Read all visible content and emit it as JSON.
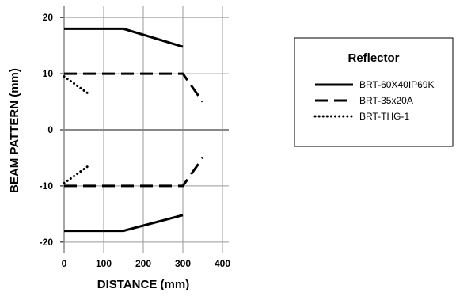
{
  "chart_data": {
    "type": "line",
    "title": "",
    "xlabel": "DISTANCE (mm)",
    "ylabel": "BEAM PATTERN (mm)",
    "xlim": [
      0,
      400
    ],
    "ylim": [
      -22,
      22
    ],
    "xticks": [
      "0",
      "100",
      "200",
      "300",
      "400"
    ],
    "yticks": [
      "20",
      "10",
      "0",
      "-10",
      "-20"
    ],
    "grid": true,
    "legend_placement": "right",
    "legend_title": "Reflector",
    "series": [
      {
        "name": "BRT-60X40IP69K",
        "style": "solid",
        "lines": [
          [
            [
              0,
              18
            ],
            [
              150,
              18
            ],
            [
              300,
              14.8
            ]
          ],
          [
            [
              0,
              -18
            ],
            [
              150,
              -18
            ],
            [
              300,
              -15.2
            ]
          ]
        ]
      },
      {
        "name": "BRT-35x20A",
        "style": "dashed",
        "lines": [
          [
            [
              0,
              10
            ],
            [
              300,
              10
            ],
            [
              350,
              5
            ]
          ],
          [
            [
              0,
              -10
            ],
            [
              300,
              -10
            ],
            [
              350,
              -5
            ]
          ]
        ]
      },
      {
        "name": "BRT-THG-1",
        "style": "dotted",
        "lines": [
          [
            [
              0,
              9.5
            ],
            [
              60,
              6.5
            ]
          ],
          [
            [
              0,
              -9.5
            ],
            [
              60,
              -6.5
            ]
          ]
        ]
      }
    ]
  }
}
